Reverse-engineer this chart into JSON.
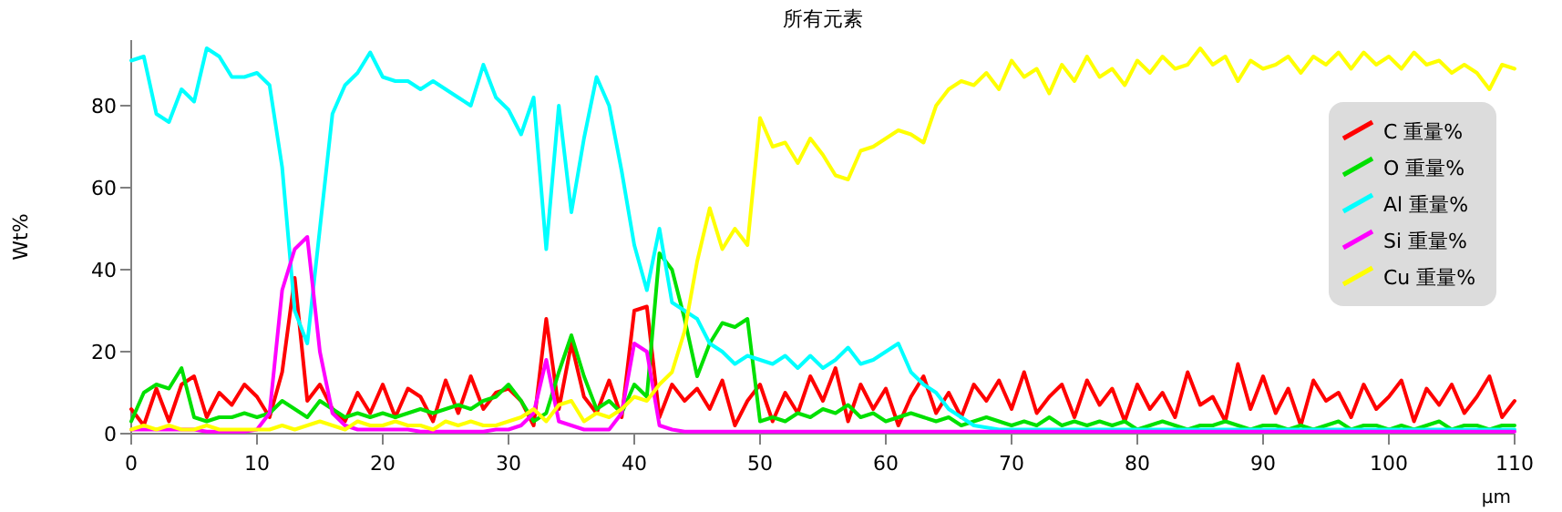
{
  "chart_data": {
    "type": "line",
    "title": "所有元素",
    "xlabel": "µm",
    "ylabel": "Wt%",
    "legend": "top right",
    "xlim": [
      0,
      110
    ],
    "ylim": [
      0,
      96
    ],
    "xticks": [
      0,
      10,
      20,
      30,
      40,
      50,
      60,
      70,
      80,
      90,
      100,
      110
    ],
    "yticks": [
      0,
      20,
      40,
      60,
      80
    ],
    "x": [
      0,
      1,
      2,
      3,
      4,
      5,
      6,
      7,
      8,
      9,
      10,
      11,
      12,
      13,
      14,
      15,
      16,
      17,
      18,
      19,
      20,
      21,
      22,
      23,
      24,
      25,
      26,
      27,
      28,
      29,
      30,
      31,
      32,
      33,
      34,
      35,
      36,
      37,
      38,
      39,
      40,
      41,
      42,
      43,
      44,
      45,
      46,
      47,
      48,
      49,
      50,
      51,
      52,
      53,
      54,
      55,
      56,
      57,
      58,
      59,
      60,
      61,
      62,
      63,
      64,
      65,
      66,
      67,
      68,
      69,
      70,
      71,
      72,
      73,
      74,
      75,
      76,
      77,
      78,
      79,
      80,
      81,
      82,
      83,
      84,
      85,
      86,
      87,
      88,
      89,
      90,
      91,
      92,
      93,
      94,
      95,
      96,
      97,
      98,
      99,
      100,
      101,
      102,
      103,
      104,
      105,
      106,
      107,
      108,
      109,
      110
    ],
    "series": [
      {
        "name": "C 重量%",
        "color": "#ff0000",
        "values": [
          6,
          2,
          11,
          3,
          12,
          14,
          4,
          10,
          7,
          12,
          9,
          4,
          15,
          38,
          8,
          12,
          6,
          3,
          10,
          5,
          12,
          4,
          11,
          9,
          3,
          13,
          5,
          14,
          6,
          10,
          11,
          8,
          2,
          28,
          6,
          22,
          9,
          5,
          13,
          4,
          30,
          31,
          4,
          12,
          8,
          11,
          6,
          13,
          2,
          8,
          12,
          3,
          10,
          5,
          14,
          8,
          16,
          3,
          12,
          6,
          11,
          2,
          9,
          14,
          5,
          10,
          4,
          12,
          8,
          13,
          6,
          15,
          5,
          9,
          12,
          4,
          13,
          7,
          11,
          3,
          12,
          6,
          10,
          4,
          15,
          7,
          9,
          3,
          17,
          6,
          14,
          5,
          11,
          2,
          13,
          8,
          10,
          4,
          12,
          6,
          9,
          13,
          3,
          11,
          7,
          12,
          5,
          9,
          14,
          4,
          8
        ]
      },
      {
        "name": "O 重量%",
        "color": "#00e000",
        "values": [
          3,
          10,
          12,
          11,
          16,
          4,
          3,
          4,
          4,
          5,
          4,
          5,
          8,
          6,
          4,
          8,
          6,
          4,
          5,
          4,
          5,
          4,
          5,
          6,
          5,
          6,
          7,
          6,
          8,
          9,
          12,
          8,
          3,
          5,
          15,
          24,
          14,
          6,
          8,
          5,
          12,
          9,
          44,
          40,
          28,
          14,
          22,
          27,
          26,
          28,
          3,
          4,
          3,
          5,
          4,
          6,
          5,
          7,
          4,
          5,
          3,
          4,
          5,
          4,
          3,
          4,
          2,
          3,
          4,
          3,
          2,
          3,
          2,
          4,
          2,
          3,
          2,
          3,
          2,
          3,
          1,
          2,
          3,
          2,
          1,
          2,
          2,
          3,
          2,
          1,
          2,
          2,
          1,
          2,
          1,
          2,
          3,
          1,
          2,
          2,
          1,
          2,
          1,
          2,
          3,
          1,
          2,
          2,
          1,
          2,
          2
        ]
      },
      {
        "name": "Al 重量%",
        "color": "#00ffff",
        "values": [
          91,
          92,
          78,
          76,
          84,
          81,
          94,
          92,
          87,
          87,
          88,
          85,
          65,
          30,
          22,
          50,
          78,
          85,
          88,
          93,
          87,
          86,
          86,
          84,
          86,
          84,
          82,
          80,
          90,
          82,
          79,
          73,
          82,
          45,
          80,
          54,
          72,
          87,
          80,
          64,
          46,
          35,
          50,
          32,
          30,
          28,
          22,
          20,
          17,
          19,
          18,
          17,
          19,
          16,
          19,
          16,
          18,
          21,
          17,
          18,
          20,
          22,
          15,
          12,
          10,
          6,
          4,
          2,
          1.5,
          1,
          1,
          1,
          1,
          1,
          1,
          1,
          1,
          1,
          1,
          1,
          1,
          1,
          1,
          1,
          1,
          1,
          1,
          1,
          1,
          1,
          1,
          1,
          1,
          1,
          1,
          1,
          1,
          1,
          1,
          1,
          1,
          1,
          1,
          1,
          1,
          1,
          1,
          1,
          1,
          1,
          1
        ]
      },
      {
        "name": "Si 重量%",
        "color": "#ff00ff",
        "values": [
          1,
          1,
          1,
          1,
          1,
          1,
          0.5,
          0.5,
          0.5,
          0.5,
          1,
          5,
          35,
          45,
          48,
          20,
          5,
          2,
          1,
          1,
          1,
          1,
          1,
          0.5,
          0.5,
          0.5,
          0.5,
          0.5,
          0.5,
          1,
          1,
          2,
          5,
          18,
          3,
          2,
          1,
          1,
          1,
          5,
          22,
          20,
          2,
          1,
          0.5,
          0.5,
          0.5,
          0.5,
          0.5,
          0.5,
          0.5,
          0.5,
          0.5,
          0.5,
          0.5,
          0.5,
          0.5,
          0.5,
          0.5,
          0.5,
          0.5,
          0.5,
          0.5,
          0.5,
          0.5,
          0.5,
          0.5,
          0.5,
          0.5,
          0.5,
          0.5,
          0.5,
          0.5,
          0.5,
          0.5,
          0.5,
          0.5,
          0.5,
          0.5,
          0.5,
          0.5,
          0.5,
          0.5,
          0.5,
          0.5,
          0.5,
          0.5,
          0.5,
          0.5,
          0.5,
          0.5,
          0.5,
          0.5,
          0.5,
          0.5,
          0.5,
          0.5,
          0.5,
          0.5,
          0.5,
          0.5,
          0.5,
          0.5,
          0.5,
          0.5,
          0.5,
          0.5,
          0.5,
          0.5,
          0.5,
          0.5
        ]
      },
      {
        "name": "Cu 重量%",
        "color": "#ffff00",
        "values": [
          1,
          2,
          1,
          2,
          1,
          1,
          2,
          1,
          1,
          1,
          1,
          1,
          2,
          1,
          2,
          3,
          2,
          1,
          3,
          2,
          2,
          3,
          2,
          2,
          1,
          3,
          2,
          3,
          2,
          2,
          3,
          4,
          6,
          3,
          7,
          8,
          3,
          5,
          4,
          6,
          9,
          8,
          12,
          15,
          25,
          42,
          55,
          45,
          50,
          46,
          77,
          70,
          71,
          66,
          72,
          68,
          63,
          62,
          69,
          70,
          72,
          74,
          73,
          71,
          80,
          84,
          86,
          85,
          88,
          84,
          91,
          87,
          89,
          83,
          90,
          86,
          92,
          87,
          89,
          85,
          91,
          88,
          92,
          89,
          90,
          94,
          90,
          92,
          86,
          91,
          89,
          90,
          92,
          88,
          92,
          90,
          93,
          89,
          93,
          90,
          92,
          89,
          93,
          90,
          91,
          88,
          90,
          88,
          84,
          90,
          89
        ]
      }
    ]
  }
}
